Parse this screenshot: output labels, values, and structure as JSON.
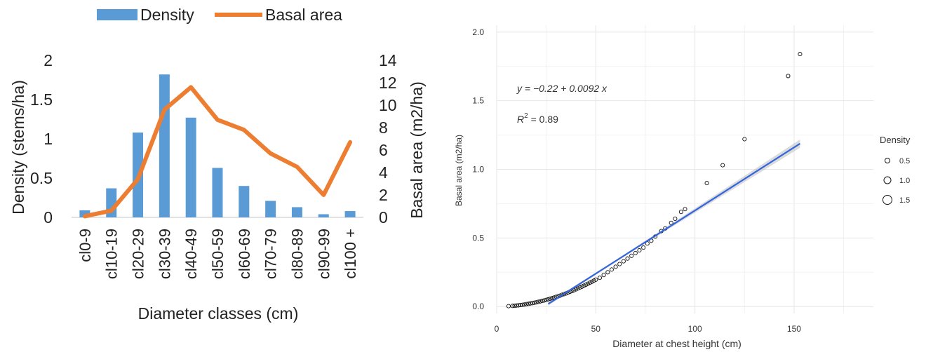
{
  "chart_data": [
    {
      "type": "bar",
      "xlabel": "Diameter classes (cm)",
      "ylabel": "Density (stems/ha)",
      "y2label": "Basal area (m2/ha)",
      "categories": [
        "cl0-9",
        "cl10-19",
        "cl20-29",
        "cl30-39",
        "cl40-49",
        "cl50-59",
        "cl60-69",
        "cl70-79",
        "cl80-89",
        "cl90-99",
        "cl100 +"
      ],
      "ylim": [
        0,
        2
      ],
      "y2lim": [
        0,
        14
      ],
      "yticks": [
        "0",
        "0.5",
        "1",
        "1.5",
        "2"
      ],
      "y2ticks": [
        "0",
        "2",
        "4",
        "6",
        "8",
        "10",
        "12",
        "14"
      ],
      "legend_position": "top",
      "colors": {
        "bar": "#5b9bd5",
        "line": "#ed7d31"
      },
      "series": [
        {
          "name": "Density",
          "type": "bar",
          "axis": "left",
          "values": [
            0.09,
            0.37,
            1.08,
            1.82,
            1.27,
            0.63,
            0.4,
            0.21,
            0.13,
            0.04,
            0.08
          ]
        },
        {
          "name": "Basal area",
          "type": "line",
          "axis": "right",
          "values": [
            0.1,
            0.6,
            3.4,
            9.6,
            11.6,
            8.7,
            7.8,
            5.7,
            4.5,
            2.0,
            6.7
          ]
        }
      ]
    },
    {
      "type": "scatter",
      "xlabel": "Diameter at chest height (cm)",
      "ylabel": "Basal area (m2/ha)",
      "xlim": [
        0,
        190
      ],
      "ylim": [
        -0.05,
        2.05
      ],
      "xticks": [
        0,
        50,
        100,
        150
      ],
      "yticks": [
        0.0,
        0.5,
        1.0,
        1.5,
        2.0
      ],
      "grid": true,
      "equation": "y = −0.22 + 0.0092 x",
      "r2_label": "R",
      "r2_sup": "2",
      "r2_value": " = 0.89",
      "fit": {
        "intercept": -0.22,
        "slope": 0.0092,
        "x_range": [
          26,
          153
        ],
        "color": "#3366dd"
      },
      "legend": {
        "title": "Density",
        "entries": [
          "0.5",
          "1.0",
          "1.5"
        ],
        "position": "right"
      },
      "points": [
        [
          6,
          0.003
        ],
        [
          8,
          0.005
        ],
        [
          9,
          0.006
        ],
        [
          10,
          0.008
        ],
        [
          11,
          0.009
        ],
        [
          12,
          0.011
        ],
        [
          13,
          0.013
        ],
        [
          14,
          0.015
        ],
        [
          15,
          0.018
        ],
        [
          16,
          0.02
        ],
        [
          17,
          0.023
        ],
        [
          18,
          0.025
        ],
        [
          19,
          0.028
        ],
        [
          20,
          0.031
        ],
        [
          21,
          0.035
        ],
        [
          22,
          0.038
        ],
        [
          23,
          0.042
        ],
        [
          24,
          0.045
        ],
        [
          25,
          0.049
        ],
        [
          26,
          0.053
        ],
        [
          27,
          0.057
        ],
        [
          28,
          0.062
        ],
        [
          29,
          0.066
        ],
        [
          30,
          0.071
        ],
        [
          31,
          0.075
        ],
        [
          32,
          0.08
        ],
        [
          33,
          0.086
        ],
        [
          34,
          0.091
        ],
        [
          35,
          0.096
        ],
        [
          36,
          0.102
        ],
        [
          37,
          0.108
        ],
        [
          38,
          0.113
        ],
        [
          39,
          0.119
        ],
        [
          40,
          0.126
        ],
        [
          41,
          0.132
        ],
        [
          42,
          0.139
        ],
        [
          43,
          0.145
        ],
        [
          44,
          0.152
        ],
        [
          45,
          0.159
        ],
        [
          46,
          0.166
        ],
        [
          47,
          0.174
        ],
        [
          48,
          0.181
        ],
        [
          49,
          0.189
        ],
        [
          50,
          0.196
        ],
        [
          52,
          0.21
        ],
        [
          54,
          0.23
        ],
        [
          56,
          0.25
        ],
        [
          58,
          0.27
        ],
        [
          60,
          0.29
        ],
        [
          62,
          0.31
        ],
        [
          64,
          0.33
        ],
        [
          66,
          0.35
        ],
        [
          68,
          0.37
        ],
        [
          70,
          0.39
        ],
        [
          72,
          0.41
        ],
        [
          74,
          0.43
        ],
        [
          76,
          0.46
        ],
        [
          78,
          0.48
        ],
        [
          80,
          0.51
        ],
        [
          83,
          0.55
        ],
        [
          85,
          0.57
        ],
        [
          88,
          0.61
        ],
        [
          90,
          0.64
        ],
        [
          93,
          0.69
        ],
        [
          95,
          0.71
        ],
        [
          106,
          0.9
        ],
        [
          114,
          1.03
        ],
        [
          125,
          1.22
        ],
        [
          147,
          1.68
        ],
        [
          153,
          1.84
        ]
      ]
    }
  ]
}
